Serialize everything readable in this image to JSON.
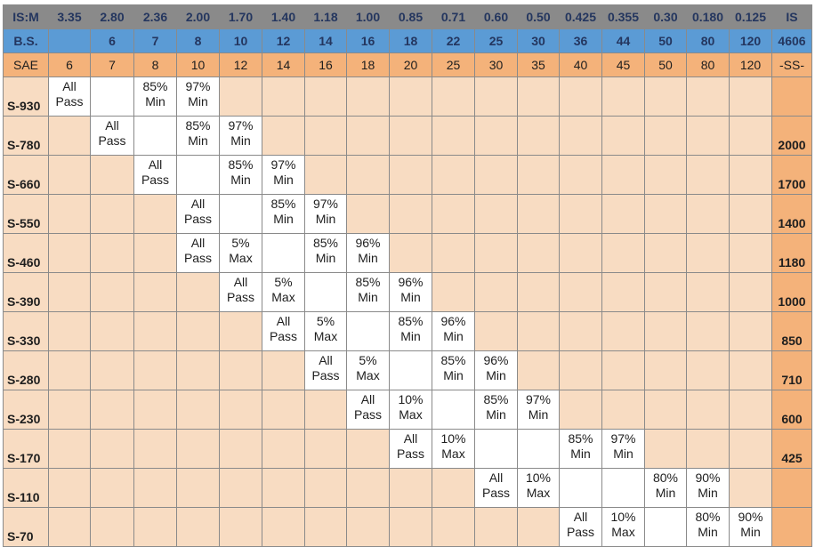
{
  "header_is_m": [
    "IS:M",
    "3.35",
    "2.80",
    "2.36",
    "2.00",
    "1.70",
    "1.40",
    "1.18",
    "1.00",
    "0.85",
    "0.71",
    "0.60",
    "0.50",
    "0.425",
    "0.355",
    "0.30",
    "0.180",
    "0.125",
    "IS"
  ],
  "header_bs": [
    "B.S.",
    "",
    "6",
    "7",
    "8",
    "10",
    "12",
    "14",
    "16",
    "18",
    "22",
    "25",
    "30",
    "36",
    "44",
    "50",
    "80",
    "120",
    "4606"
  ],
  "header_sae": [
    "SAE",
    "6",
    "7",
    "8",
    "10",
    "12",
    "14",
    "16",
    "18",
    "20",
    "25",
    "30",
    "35",
    "40",
    "45",
    "50",
    "80",
    "120",
    "-SS-"
  ],
  "rows": [
    {
      "grade": "S-930",
      "is": "",
      "cells": [
        {
          "col": 1,
          "l1": "All",
          "l2": "Pass"
        },
        {
          "col": 2,
          "l1": "",
          "l2": ""
        },
        {
          "col": 3,
          "l1": "85%",
          "l2": "Min"
        },
        {
          "col": 4,
          "l1": "97%",
          "l2": "Min"
        }
      ]
    },
    {
      "grade": "S-780",
      "is": "2000",
      "cells": [
        {
          "col": 2,
          "l1": "All",
          "l2": "Pass"
        },
        {
          "col": 3,
          "l1": "",
          "l2": ""
        },
        {
          "col": 4,
          "l1": "85%",
          "l2": "Min"
        },
        {
          "col": 5,
          "l1": "97%",
          "l2": "Min"
        }
      ]
    },
    {
      "grade": "S-660",
      "is": "1700",
      "cells": [
        {
          "col": 3,
          "l1": "All",
          "l2": "Pass"
        },
        {
          "col": 4,
          "l1": "",
          "l2": ""
        },
        {
          "col": 5,
          "l1": "85%",
          "l2": "Min"
        },
        {
          "col": 6,
          "l1": "97%",
          "l2": "Min"
        }
      ]
    },
    {
      "grade": "S-550",
      "is": "1400",
      "cells": [
        {
          "col": 4,
          "l1": "All",
          "l2": "Pass"
        },
        {
          "col": 5,
          "l1": "",
          "l2": ""
        },
        {
          "col": 6,
          "l1": "85%",
          "l2": "Min"
        },
        {
          "col": 7,
          "l1": "97%",
          "l2": "Min"
        }
      ]
    },
    {
      "grade": "S-460",
      "is": "1180",
      "cells": [
        {
          "col": 4,
          "l1": "All",
          "l2": "Pass"
        },
        {
          "col": 5,
          "l1": "5%",
          "l2": "Max"
        },
        {
          "col": 6,
          "l1": "",
          "l2": ""
        },
        {
          "col": 7,
          "l1": "85%",
          "l2": "Min"
        },
        {
          "col": 8,
          "l1": "96%",
          "l2": "Min"
        }
      ]
    },
    {
      "grade": "S-390",
      "is": "1000",
      "cells": [
        {
          "col": 5,
          "l1": "All",
          "l2": "Pass"
        },
        {
          "col": 6,
          "l1": "5%",
          "l2": "Max"
        },
        {
          "col": 7,
          "l1": "",
          "l2": ""
        },
        {
          "col": 8,
          "l1": "85%",
          "l2": "Min"
        },
        {
          "col": 9,
          "l1": "96%",
          "l2": "Min"
        }
      ]
    },
    {
      "grade": "S-330",
      "is": "850",
      "cells": [
        {
          "col": 6,
          "l1": "All",
          "l2": "Pass"
        },
        {
          "col": 7,
          "l1": "5%",
          "l2": "Max"
        },
        {
          "col": 8,
          "l1": "",
          "l2": ""
        },
        {
          "col": 9,
          "l1": "85%",
          "l2": "Min"
        },
        {
          "col": 10,
          "l1": "96%",
          "l2": "Min"
        }
      ]
    },
    {
      "grade": "S-280",
      "is": "710",
      "cells": [
        {
          "col": 7,
          "l1": "All",
          "l2": "Pass"
        },
        {
          "col": 8,
          "l1": "5%",
          "l2": "Max"
        },
        {
          "col": 9,
          "l1": "",
          "l2": ""
        },
        {
          "col": 10,
          "l1": "85%",
          "l2": "Min"
        },
        {
          "col": 11,
          "l1": "96%",
          "l2": "Min"
        }
      ]
    },
    {
      "grade": "S-230",
      "is": "600",
      "cells": [
        {
          "col": 8,
          "l1": "All",
          "l2": "Pass"
        },
        {
          "col": 9,
          "l1": "10%",
          "l2": "Max"
        },
        {
          "col": 10,
          "l1": "",
          "l2": ""
        },
        {
          "col": 11,
          "l1": "85%",
          "l2": "Min"
        },
        {
          "col": 12,
          "l1": "97%",
          "l2": "Min"
        }
      ]
    },
    {
      "grade": "S-170",
      "is": "425",
      "cells": [
        {
          "col": 9,
          "l1": "All",
          "l2": "Pass"
        },
        {
          "col": 10,
          "l1": "10%",
          "l2": "Max"
        },
        {
          "col": 11,
          "l1": "",
          "l2": ""
        },
        {
          "col": 12,
          "l1": "",
          "l2": ""
        },
        {
          "col": 13,
          "l1": "85%",
          "l2": "Min"
        },
        {
          "col": 14,
          "l1": "97%",
          "l2": "Min"
        }
      ]
    },
    {
      "grade": "S-110",
      "is": "",
      "cells": [
        {
          "col": 11,
          "l1": "All",
          "l2": "Pass"
        },
        {
          "col": 12,
          "l1": "10%",
          "l2": "Max"
        },
        {
          "col": 13,
          "l1": "",
          "l2": ""
        },
        {
          "col": 14,
          "l1": "",
          "l2": ""
        },
        {
          "col": 15,
          "l1": "80%",
          "l2": "Min"
        },
        {
          "col": 16,
          "l1": "90%",
          "l2": "Min"
        }
      ]
    },
    {
      "grade": "S-70",
      "is": "",
      "cells": [
        {
          "col": 13,
          "l1": "All",
          "l2": "Pass"
        },
        {
          "col": 14,
          "l1": "10%",
          "l2": "Max"
        },
        {
          "col": 15,
          "l1": "",
          "l2": ""
        },
        {
          "col": 16,
          "l1": "80%",
          "l2": "Min"
        },
        {
          "col": 17,
          "l1": "90%",
          "l2": "Min"
        }
      ]
    }
  ]
}
